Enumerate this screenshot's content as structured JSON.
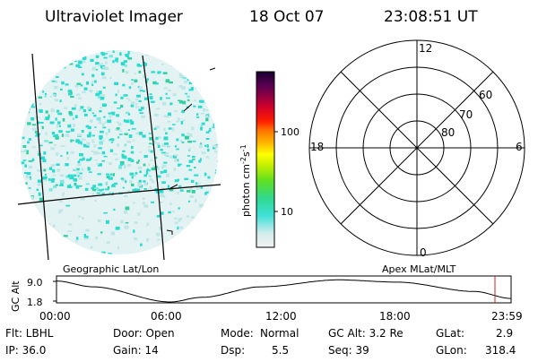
{
  "header": {
    "title": "Ultraviolet Imager",
    "date": "18 Oct 07",
    "time": "23:08:51 UT"
  },
  "colorbar": {
    "label": "photon cm-2s-1",
    "ticks": [
      "100",
      "10"
    ]
  },
  "polar_plot": {
    "mlt_labels": {
      "top": "12",
      "right": "6",
      "bottom": "0",
      "left": "18"
    },
    "lat_labels": [
      "60",
      "70",
      "80"
    ]
  },
  "panel_labels": {
    "left": "Geographic Lat/Lon",
    "right": "Apex MLat/MLT"
  },
  "timeline": {
    "ylabel": "GC Alt",
    "y_ticks": [
      "9.0",
      "1.8"
    ],
    "x_ticks": [
      "00:00",
      "06:00",
      "12:00",
      "18:00",
      "23:59"
    ]
  },
  "status": {
    "flt": "Flt: LBHL",
    "ip": "IP: 36.0",
    "door": "Door: Open",
    "gain": "Gain: 14",
    "mode_label": "Mode:",
    "mode_value": "Normal",
    "dsp_label": "Dsp:",
    "dsp_value": "5.5",
    "gc_alt": "GC Alt: 3.2 Re",
    "seq": "Seq: 39",
    "glat_label": "GLat:",
    "glat_value": "2.9",
    "glon_label": "GLon:",
    "glon_value": "318.4"
  },
  "colors": {
    "background": "#ffffff",
    "ink": "#000000",
    "aurora_noise": "#20e0d0",
    "current_time_marker": "#cc2222"
  }
}
